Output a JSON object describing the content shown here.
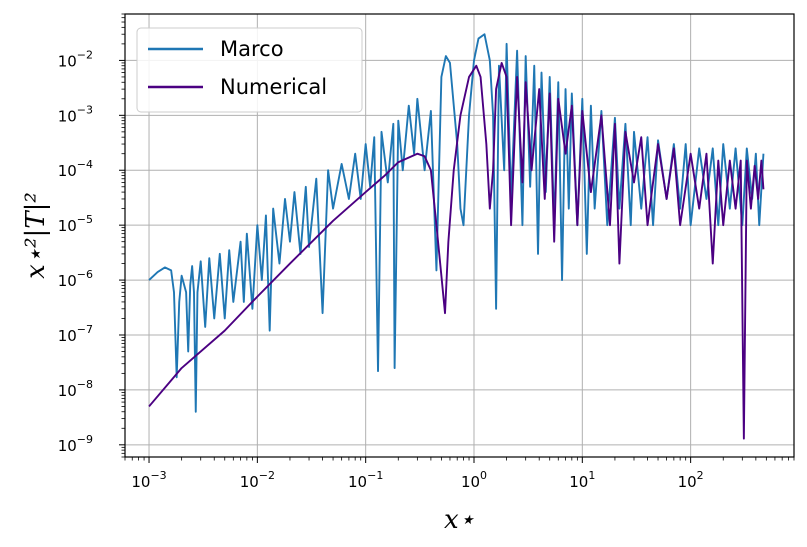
{
  "chart_data": {
    "type": "line",
    "xlabel": "x⋆",
    "ylabel": "x⋆²|T|²",
    "x_scale": "log",
    "y_scale": "log",
    "xlim": [
      0.0006,
      900
    ],
    "ylim": [
      6e-10,
      0.07
    ],
    "grid": true,
    "legend": "top-left",
    "x_ticks": [
      {
        "value": 0.001,
        "base": "10",
        "exp": "−3"
      },
      {
        "value": 0.01,
        "base": "10",
        "exp": "−2"
      },
      {
        "value": 0.1,
        "base": "10",
        "exp": "−1"
      },
      {
        "value": 1,
        "base": "10",
        "exp": "0"
      },
      {
        "value": 10,
        "base": "10",
        "exp": "1"
      },
      {
        "value": 100,
        "base": "10",
        "exp": "2"
      }
    ],
    "y_ticks": [
      {
        "value": 1e-09,
        "base": "10",
        "exp": "−9"
      },
      {
        "value": 1e-08,
        "base": "10",
        "exp": "−8"
      },
      {
        "value": 1e-07,
        "base": "10",
        "exp": "−7"
      },
      {
        "value": 1e-06,
        "base": "10",
        "exp": "−6"
      },
      {
        "value": 1e-05,
        "base": "10",
        "exp": "−5"
      },
      {
        "value": 0.0001,
        "base": "10",
        "exp": "−4"
      },
      {
        "value": 0.001,
        "base": "10",
        "exp": "−3"
      },
      {
        "value": 0.01,
        "base": "10",
        "exp": "−2"
      }
    ],
    "series": [
      {
        "name": "Marco",
        "color": "#1f77b4",
        "points": [
          [
            0.001,
            1e-06
          ],
          [
            0.0012,
            1.4e-06
          ],
          [
            0.0014,
            1.7e-06
          ],
          [
            0.0016,
            1.5e-06
          ],
          [
            0.0017,
            6e-07
          ],
          [
            0.0018,
            1.7e-08
          ],
          [
            0.0019,
            4e-07
          ],
          [
            0.002,
            1.2e-06
          ],
          [
            0.0022,
            6e-07
          ],
          [
            0.0023,
            5e-08
          ],
          [
            0.0024,
            8e-07
          ],
          [
            0.0025,
            1.8e-06
          ],
          [
            0.0026,
            6e-07
          ],
          [
            0.0027,
            4e-09
          ],
          [
            0.0028,
            6e-07
          ],
          [
            0.003,
            2.2e-06
          ],
          [
            0.0033,
            1.4e-07
          ],
          [
            0.0036,
            2.5e-06
          ],
          [
            0.004,
            2e-07
          ],
          [
            0.0045,
            3e-06
          ],
          [
            0.005,
            2e-07
          ],
          [
            0.0055,
            3.5e-06
          ],
          [
            0.006,
            4e-07
          ],
          [
            0.007,
            5e-06
          ],
          [
            0.0075,
            4e-07
          ],
          [
            0.008,
            7e-06
          ],
          [
            0.009,
            3e-07
          ],
          [
            0.01,
            1e-05
          ],
          [
            0.011,
            1e-06
          ],
          [
            0.012,
            1.5e-05
          ],
          [
            0.013,
            1.2e-07
          ],
          [
            0.014,
            2e-05
          ],
          [
            0.016,
            2e-06
          ],
          [
            0.018,
            3e-05
          ],
          [
            0.02,
            5e-06
          ],
          [
            0.022,
            4e-05
          ],
          [
            0.025,
            3e-06
          ],
          [
            0.028,
            5e-05
          ],
          [
            0.03,
            4e-06
          ],
          [
            0.035,
            7e-05
          ],
          [
            0.04,
            2.5e-07
          ],
          [
            0.045,
            0.0001
          ],
          [
            0.05,
            2e-05
          ],
          [
            0.06,
            0.00013
          ],
          [
            0.07,
            3e-05
          ],
          [
            0.08,
            0.0002
          ],
          [
            0.09,
            3e-05
          ],
          [
            0.1,
            0.0003
          ],
          [
            0.11,
            5e-05
          ],
          [
            0.12,
            0.0004
          ],
          [
            0.13,
            2.2e-08
          ],
          [
            0.14,
            0.0005
          ],
          [
            0.16,
            6e-05
          ],
          [
            0.18,
            0.0007
          ],
          [
            0.185,
            2.5e-08
          ],
          [
            0.2,
            0.0008
          ],
          [
            0.22,
            0.0001
          ],
          [
            0.25,
            0.0015
          ],
          [
            0.28,
            0.0002
          ],
          [
            0.3,
            0.002
          ],
          [
            0.35,
            0.0001
          ],
          [
            0.4,
            0.0012
          ],
          [
            0.45,
            1.5e-06
          ],
          [
            0.5,
            0.005
          ],
          [
            0.55,
            0.012
          ],
          [
            0.6,
            0.009
          ],
          [
            0.7,
            0.0003
          ],
          [
            0.75,
            2e-05
          ],
          [
            0.8,
            1e-05
          ],
          [
            0.9,
            0.001
          ],
          [
            1.0,
            0.01
          ],
          [
            1.1,
            0.025
          ],
          [
            1.25,
            0.03
          ],
          [
            1.4,
            0.01
          ],
          [
            1.5,
            0.001
          ],
          [
            1.6,
            3e-07
          ],
          [
            1.7,
            0.008
          ],
          [
            1.9,
            0.0001
          ],
          [
            2.0,
            0.02
          ],
          [
            2.2,
            3e-05
          ],
          [
            2.5,
            0.015
          ],
          [
            2.8,
            1e-05
          ],
          [
            3.0,
            0.012
          ],
          [
            3.3,
            5e-05
          ],
          [
            3.6,
            0.008
          ],
          [
            3.9,
            3e-06
          ],
          [
            4.2,
            0.006
          ],
          [
            4.6,
            4e-05
          ],
          [
            5.0,
            0.005
          ],
          [
            5.5,
            1e-05
          ],
          [
            6.0,
            0.004
          ],
          [
            6.5,
            1e-06
          ],
          [
            7.0,
            0.003
          ],
          [
            7.5,
            2e-05
          ],
          [
            8.0,
            0.0025
          ],
          [
            9.0,
            1e-05
          ],
          [
            10,
            0.002
          ],
          [
            11,
            3e-06
          ],
          [
            12,
            0.0015
          ],
          [
            13,
            2e-05
          ],
          [
            15,
            0.0012
          ],
          [
            17,
            1e-05
          ],
          [
            20,
            0.0009
          ],
          [
            22,
            2e-05
          ],
          [
            25,
            0.0007
          ],
          [
            28,
            1e-05
          ],
          [
            30,
            0.0005
          ],
          [
            35,
            2e-05
          ],
          [
            40,
            0.0004
          ],
          [
            45,
            1e-05
          ],
          [
            50,
            0.00035
          ],
          [
            60,
            3e-05
          ],
          [
            70,
            0.0003
          ],
          [
            80,
            2e-05
          ],
          [
            90,
            0.0003
          ],
          [
            100,
            1e-05
          ],
          [
            120,
            0.00025
          ],
          [
            140,
            3e-05
          ],
          [
            160,
            0.00025
          ],
          [
            180,
            1e-05
          ],
          [
            200,
            0.0003
          ],
          [
            230,
            2e-05
          ],
          [
            260,
            0.00025
          ],
          [
            300,
            1e-05
          ],
          [
            330,
            0.00025
          ],
          [
            370,
            3e-05
          ],
          [
            400,
            0.0002
          ],
          [
            430,
            1e-05
          ],
          [
            470,
            0.0002
          ]
        ]
      },
      {
        "name": "Numerical",
        "color": "#4b0082",
        "points": [
          [
            0.001,
            5e-09
          ],
          [
            0.002,
            2.5e-08
          ],
          [
            0.005,
            1.2e-07
          ],
          [
            0.01,
            5e-07
          ],
          [
            0.02,
            2e-06
          ],
          [
            0.05,
            1.2e-05
          ],
          [
            0.1,
            4e-05
          ],
          [
            0.15,
            8e-05
          ],
          [
            0.2,
            0.00014
          ],
          [
            0.3,
            0.0002
          ],
          [
            0.35,
            0.00018
          ],
          [
            0.4,
            0.0001
          ],
          [
            0.45,
            1e-05
          ],
          [
            0.5,
            1.2e-06
          ],
          [
            0.54,
            2.5e-07
          ],
          [
            0.58,
            5e-06
          ],
          [
            0.65,
            0.0001
          ],
          [
            0.75,
            0.001
          ],
          [
            0.9,
            0.005
          ],
          [
            1.05,
            0.008
          ],
          [
            1.15,
            0.005
          ],
          [
            1.3,
            0.0003
          ],
          [
            1.4,
            2e-05
          ],
          [
            1.5,
            0.0001
          ],
          [
            1.6,
            0.003
          ],
          [
            1.8,
            0.009
          ],
          [
            2.0,
            0.005
          ],
          [
            2.2,
            1e-05
          ],
          [
            2.5,
            0.005
          ],
          [
            2.8,
            6e-05
          ],
          [
            3.0,
            0.004
          ],
          [
            3.4,
            0.0001
          ],
          [
            4.0,
            0.003
          ],
          [
            4.5,
            3e-05
          ],
          [
            5.0,
            0.0025
          ],
          [
            5.5,
            5e-06
          ],
          [
            6.0,
            0.002
          ],
          [
            7.0,
            0.0002
          ],
          [
            8.0,
            0.0015
          ],
          [
            9.0,
            1e-05
          ],
          [
            10,
            0.0012
          ],
          [
            12,
            4e-05
          ],
          [
            15,
            0.001
          ],
          [
            18,
            1e-05
          ],
          [
            20,
            0.0007
          ],
          [
            22,
            2e-06
          ],
          [
            25,
            0.0005
          ],
          [
            30,
            6e-05
          ],
          [
            35,
            0.0004
          ],
          [
            40,
            1e-05
          ],
          [
            50,
            0.0003
          ],
          [
            60,
            3e-05
          ],
          [
            70,
            0.00025
          ],
          [
            80,
            1e-05
          ],
          [
            100,
            0.0002
          ],
          [
            120,
            2e-05
          ],
          [
            140,
            0.0002
          ],
          [
            160,
            2e-06
          ],
          [
            180,
            0.00015
          ],
          [
            200,
            1e-05
          ],
          [
            230,
            0.00015
          ],
          [
            260,
            2e-05
          ],
          [
            290,
            0.00015
          ],
          [
            310,
            1.3e-09
          ],
          [
            330,
            0.00015
          ],
          [
            360,
            2e-05
          ],
          [
            390,
            0.00012
          ],
          [
            420,
            3e-05
          ],
          [
            450,
            0.00015
          ],
          [
            470,
            4.5e-05
          ]
        ]
      }
    ]
  }
}
